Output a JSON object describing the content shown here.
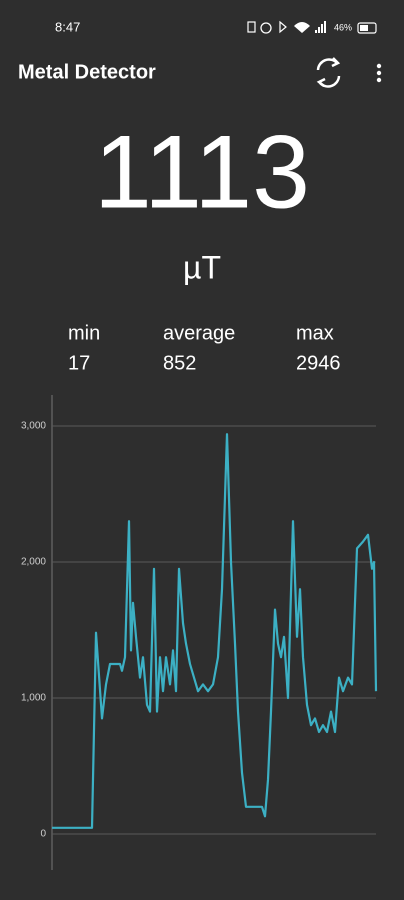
{
  "status_bar": {
    "time": "8:47",
    "battery": "46%"
  },
  "app_bar": {
    "title": "Metal Detector"
  },
  "reading": {
    "value": 1113,
    "unit": "µT"
  },
  "stats": [
    {
      "label": "min",
      "value": 17
    },
    {
      "label": "average",
      "value": 852
    },
    {
      "label": "max",
      "value": 2946
    }
  ],
  "chart_data": {
    "type": "line",
    "color": "#3cb0c4",
    "grid": true,
    "xlim": [
      0,
      324
    ],
    "ylim": [
      -265,
      3228
    ],
    "yticks": [
      0,
      {
        "value": 1000,
        "label": "1,000"
      },
      {
        "value": 2000,
        "label": "2,000"
      },
      {
        "value": 3000,
        "label": "3,000"
      }
    ],
    "x": [
      0,
      20,
      40,
      44,
      50,
      54,
      58,
      68,
      70,
      73,
      77,
      79,
      81,
      84,
      88,
      91,
      95,
      98,
      102,
      105,
      108,
      111,
      114,
      118,
      121,
      124,
      127,
      131,
      134,
      138,
      142,
      146,
      151,
      156,
      161,
      166,
      170,
      175,
      179,
      183,
      186,
      190,
      194,
      203,
      210,
      213,
      216,
      219,
      223,
      226,
      229,
      232,
      236,
      241,
      245,
      248,
      251,
      255,
      259,
      263,
      267,
      271,
      275,
      279,
      283,
      287,
      291,
      296,
      300,
      305,
      311,
      316,
      320,
      322,
      324
    ],
    "values": [
      45,
      45,
      45,
      1480,
      850,
      1100,
      1250,
      1250,
      1200,
      1300,
      2300,
      1350,
      1700,
      1450,
      1150,
      1300,
      950,
      900,
      1950,
      900,
      1300,
      1050,
      1300,
      1100,
      1350,
      1050,
      1950,
      1550,
      1400,
      1250,
      1150,
      1050,
      1100,
      1050,
      1100,
      1300,
      1800,
      2940,
      2000,
      1400,
      900,
      450,
      200,
      200,
      200,
      130,
      400,
      900,
      1650,
      1400,
      1300,
      1450,
      1000,
      2300,
      1450,
      1800,
      1300,
      950,
      800,
      850,
      750,
      800,
      750,
      900,
      750,
      1150,
      1050,
      1150,
      1100,
      2100,
      2150,
      2200,
      1950,
      2000,
      1050
    ]
  }
}
